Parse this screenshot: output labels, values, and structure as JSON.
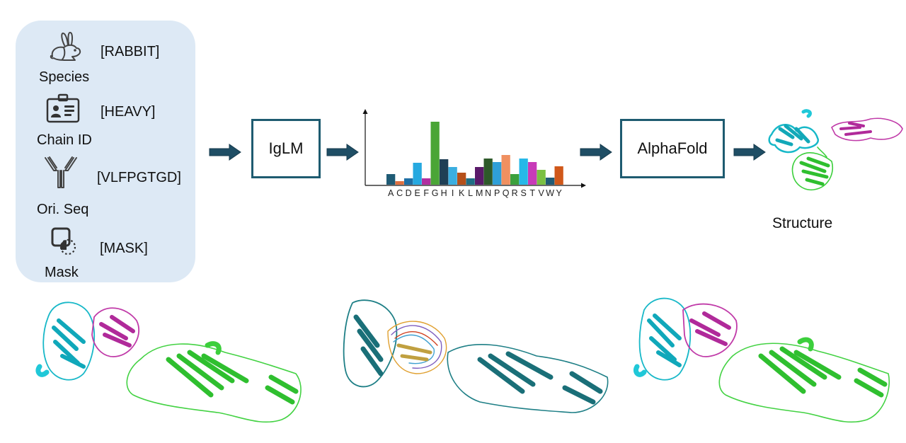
{
  "inputs": [
    {
      "label": "Species",
      "token": "[RABBIT]",
      "icon": "rabbit-icon"
    },
    {
      "label": "Chain ID",
      "token": "[HEAVY]",
      "icon": "id-card-icon"
    },
    {
      "label": "Ori. Seq",
      "token": "[VLFPGTGD]",
      "icon": "antibody-icon"
    },
    {
      "label": "Mask",
      "token": "[MASK]",
      "icon": "mask-icon"
    }
  ],
  "model_box": {
    "label": "IgLM"
  },
  "fold_box": {
    "label": "AlphaFold"
  },
  "structure_caption": "Structure",
  "chart_data": {
    "type": "bar",
    "categories": [
      "A",
      "C",
      "D",
      "E",
      "F",
      "G",
      "H",
      "I",
      "K",
      "L",
      "M",
      "N",
      "P",
      "Q",
      "R",
      "S",
      "T",
      "V",
      "W",
      "Y"
    ],
    "values": [
      15,
      5,
      9,
      31,
      9,
      89,
      36,
      25,
      17,
      9,
      25,
      37,
      32,
      42,
      15,
      37,
      32,
      21,
      10,
      26
    ],
    "colors": [
      "#1f5b75",
      "#e07040",
      "#1f6fa5",
      "#26a9e0",
      "#b030a0",
      "#4aa536",
      "#1f3f55",
      "#3aaee0",
      "#b5501a",
      "#1f6f85",
      "#5a1a6a",
      "#2e5a2a",
      "#2f9fd8",
      "#f09060",
      "#3ca03c",
      "#26b8e8",
      "#c83ab8",
      "#7ac043",
      "#1f5b75",
      "#d0581a"
    ],
    "ylim": [
      0,
      100
    ],
    "axes": "arrows"
  }
}
